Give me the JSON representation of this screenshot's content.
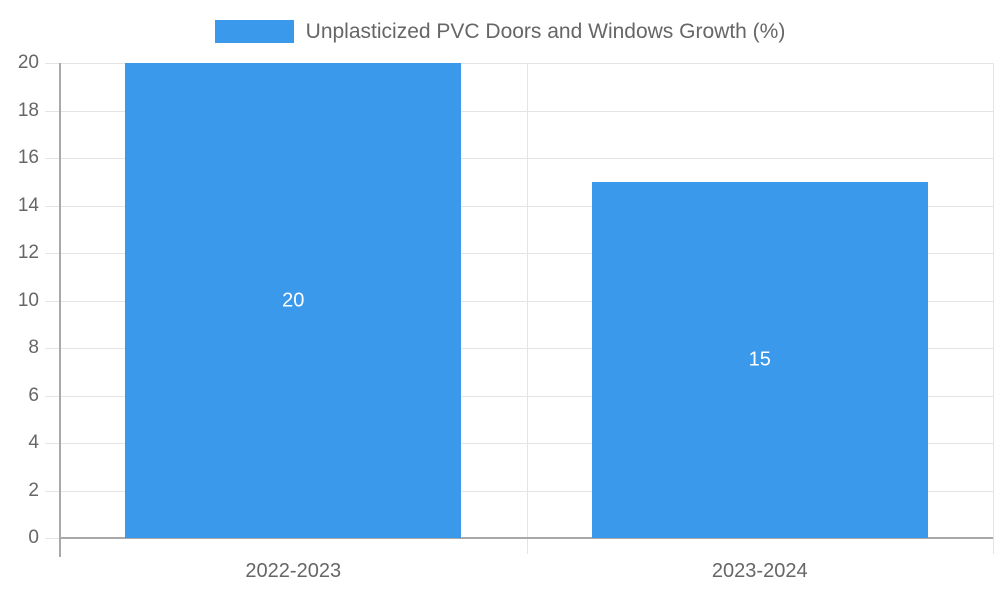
{
  "legend": {
    "label": "Unplasticized PVC Doors and Windows Growth (%)"
  },
  "chart_data": {
    "type": "bar",
    "title": "",
    "xlabel": "",
    "ylabel": "",
    "categories": [
      "2022-2023",
      "2023-2024"
    ],
    "series": [
      {
        "name": "Unplasticized PVC Doors and Windows Growth (%)",
        "values": [
          20,
          15
        ]
      }
    ],
    "data_labels": [
      "20",
      "15"
    ],
    "ylim": [
      0,
      20
    ],
    "ytick_step": 2,
    "ytick_labels": [
      "0",
      "2",
      "4",
      "6",
      "8",
      "10",
      "12",
      "14",
      "16",
      "18",
      "20"
    ],
    "grid": "on",
    "legend_position": "top-center"
  },
  "colors": {
    "bar": "#3B99EC",
    "grid": "#e4e4e4",
    "axis": "#a9a9a9",
    "tick_text": "#666666",
    "legend_text": "#666666",
    "data_label": "#ffffff",
    "background": "#ffffff"
  }
}
